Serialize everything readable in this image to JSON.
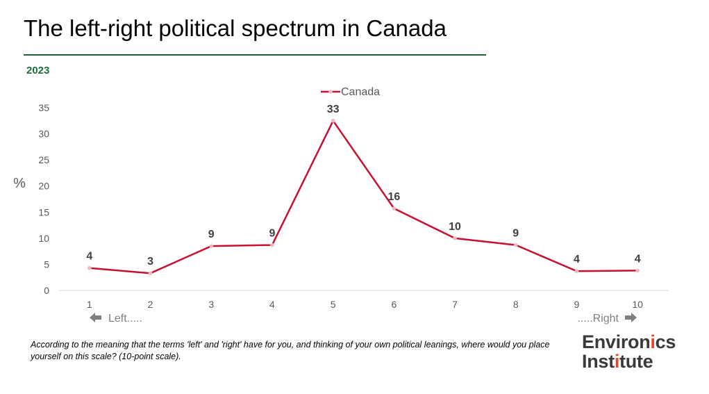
{
  "title": "The left-right political spectrum in Canada",
  "subtitle": "2023",
  "footnote": "According to the meaning that the terms 'left' and 'right' have for you, and thinking of your own political leanings, where would you place yourself on this scale? (10-point scale).",
  "logo": {
    "line1": "Environics",
    "line2": "Institute"
  },
  "colors": {
    "series": "#c8102e",
    "marker": "#f2b8c2",
    "rule": "#1e5e38",
    "year": "#1e6a3c",
    "logo_text": "#3a3a3a",
    "logo_accent": "#e2492a"
  },
  "chart_data": {
    "type": "line",
    "x": [
      "1",
      "2",
      "3",
      "4",
      "5",
      "6",
      "7",
      "8",
      "9",
      "10"
    ],
    "series": [
      {
        "name": "Canada",
        "values": [
          4.3,
          3.3,
          8.5,
          8.7,
          32.5,
          15.7,
          10.0,
          8.7,
          3.7,
          3.8
        ],
        "labels": [
          "4",
          "3",
          "9",
          "9",
          "33",
          "16",
          "10",
          "9",
          "4",
          "4"
        ]
      }
    ],
    "ylabel": "%",
    "ylim": [
      0,
      35
    ],
    "yticks": [
      "0",
      "5",
      "10",
      "15",
      "20",
      "25",
      "30",
      "35"
    ],
    "legend": "top-center",
    "grid": false,
    "annotations": {
      "left": "Left.....",
      "right": ".....Right"
    }
  }
}
